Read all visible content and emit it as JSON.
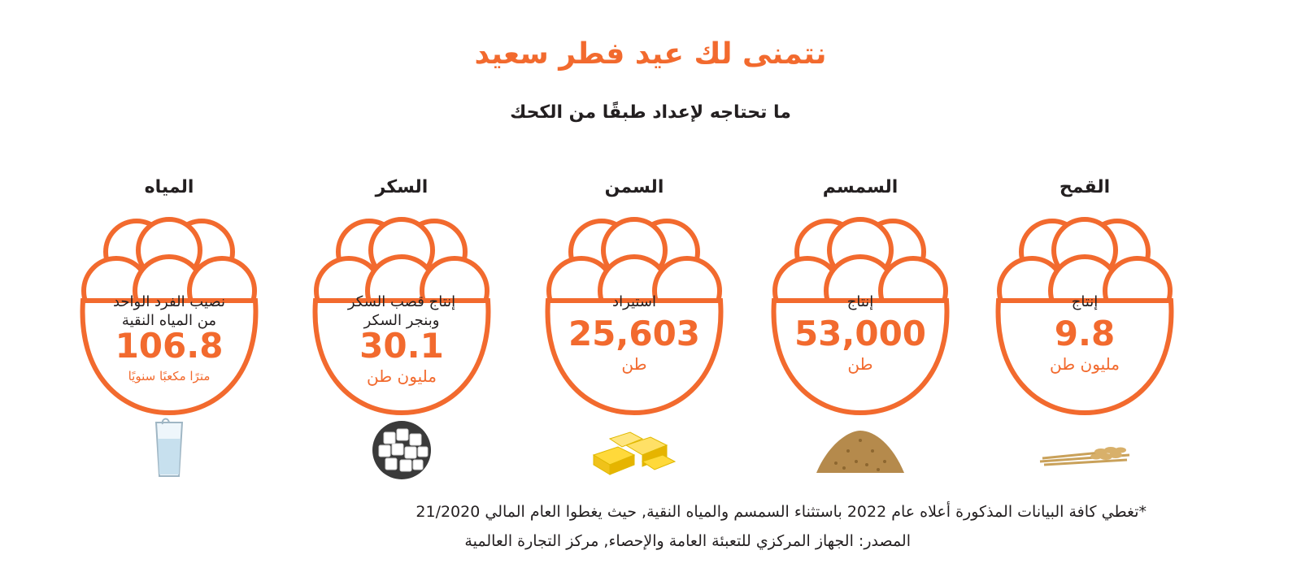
{
  "title": "نتمنى لك عيد فطر سعيد",
  "subtitle": "ما تحتاجه لإعداد طبقًا من الكحك",
  "accent_color": "#f26a2e",
  "items": [
    {
      "title": "القمح",
      "label_line1": "إنتاج",
      "label_line2": "",
      "value": "9.8",
      "unit": "مليون طن",
      "illustration": "wheat-icon"
    },
    {
      "title": "السمسم",
      "label_line1": "إنتاج",
      "label_line2": "",
      "value": "53,000",
      "unit": "طن",
      "illustration": "sesame-seeds-icon"
    },
    {
      "title": "السمن",
      "label_line1": "استيراد",
      "label_line2": "",
      "value": "25,603",
      "unit": "طن",
      "illustration": "butter-icon"
    },
    {
      "title": "السكر",
      "label_line1": "إنتاج قصب السكر",
      "label_line2": "وبنجر السكر",
      "value": "30.1",
      "unit": "مليون طن",
      "illustration": "sugar-cubes-icon"
    },
    {
      "title": "المياه",
      "label_line1": "نصيب الفرد الواحد",
      "label_line2": "من المياه النقية",
      "value": "106.8",
      "unit": "مترًا مكعبًا سنويًا",
      "illustration": "water-glass-icon"
    }
  ],
  "footnote": "*تغطي كافة البيانات المذكورة أعلاه عام 2022 باستثناء السمسم والمياه النقية, حيث يغطوا العام المالي 21/2020",
  "source": "المصدر: الجهاز المركزي للتعبئة العامة والإحصاء, مركز التجارة العالمية"
}
